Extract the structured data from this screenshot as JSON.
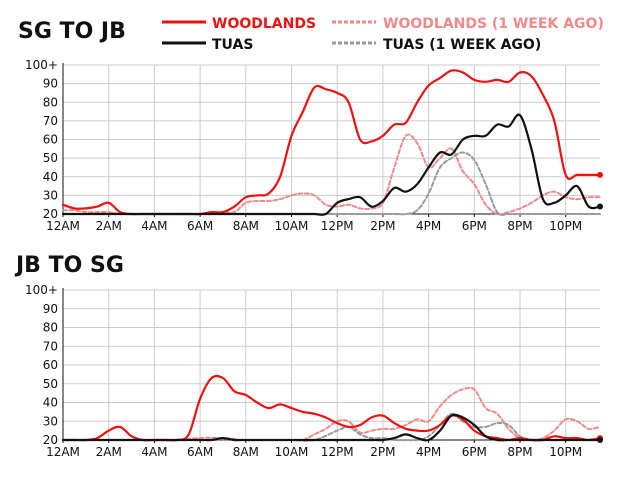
{
  "legend": {
    "items": [
      {
        "label": "WOODLANDS",
        "color": "#ee1111",
        "style": "solid"
      },
      {
        "label": "WOODLANDS (1 WEEK AGO)",
        "color": "#f08a8a",
        "style": "dashed"
      },
      {
        "label": "TUAS",
        "color": "#111111",
        "style": "solid"
      },
      {
        "label": "TUAS (1 WEEK AGO)",
        "color": "#999999",
        "style": "dashed"
      }
    ]
  },
  "chart_data": [
    {
      "type": "line",
      "title": "SG TO JB",
      "x_tick_labels": [
        "12AM",
        "2AM",
        "4AM",
        "6AM",
        "8AM",
        "10AM",
        "12PM",
        "2PM",
        "4PM",
        "6PM",
        "8PM",
        "10PM"
      ],
      "y_tick_labels": [
        "20",
        "30",
        "40",
        "50",
        "60",
        "70",
        "80",
        "90",
        "100+"
      ],
      "ylim": [
        20,
        100
      ],
      "xlim": [
        0,
        23.5
      ],
      "series": [
        {
          "name": "WOODLANDS",
          "color": "#ee1111",
          "style": "solid",
          "end_marker": true,
          "x": [
            0,
            0.5,
            1,
            1.5,
            2,
            2.5,
            3,
            3.5,
            4,
            4.5,
            5,
            5.5,
            6,
            6.5,
            7,
            7.5,
            8,
            8.5,
            9,
            9.5,
            10,
            10.5,
            11,
            11.5,
            12,
            12.5,
            13,
            13.5,
            14,
            14.5,
            15,
            15.5,
            16,
            16.5,
            17,
            17.5,
            18,
            18.5,
            19,
            19.5,
            20,
            20.5,
            21,
            21.5,
            22,
            22.5,
            23,
            23.5
          ],
          "values": [
            25,
            23,
            23,
            24,
            26,
            21,
            20,
            20,
            20,
            20,
            20,
            20,
            20,
            21,
            21,
            24,
            29,
            30,
            31,
            40,
            62,
            75,
            88,
            87,
            85,
            80,
            60,
            59,
            62,
            68,
            69,
            80,
            89,
            93,
            97,
            96,
            92,
            91,
            92,
            91,
            96,
            94,
            84,
            70,
            41,
            41,
            41,
            41
          ]
        },
        {
          "name": "WOODLANDS (1 WEEK AGO)",
          "color": "#f08a8a",
          "style": "dashed",
          "x": [
            0,
            0.5,
            1,
            1.5,
            2,
            2.5,
            3,
            3.5,
            4,
            4.5,
            5,
            5.5,
            6,
            6.5,
            7,
            7.5,
            8,
            8.5,
            9,
            9.5,
            10,
            10.5,
            11,
            11.5,
            12,
            12.5,
            13,
            13.5,
            14,
            14.5,
            15,
            15.5,
            16,
            16.5,
            17,
            17.5,
            18,
            18.5,
            19,
            19.5,
            20,
            20.5,
            21,
            21.5,
            22,
            22.5,
            23,
            23.5
          ],
          "values": [
            22,
            22,
            21,
            21,
            21,
            20,
            20,
            20,
            20,
            20,
            20,
            20,
            20,
            20,
            21,
            21,
            26,
            27,
            27,
            28,
            30,
            31,
            30,
            25,
            24,
            25,
            23,
            23,
            26,
            45,
            62,
            58,
            45,
            50,
            55,
            43,
            36,
            25,
            20,
            21,
            23,
            26,
            30,
            32,
            29,
            28,
            29,
            29
          ]
        },
        {
          "name": "TUAS",
          "color": "#111111",
          "style": "solid",
          "end_marker": true,
          "x": [
            0,
            1,
            2,
            3,
            4,
            5,
            6,
            7,
            8,
            9,
            10,
            10.5,
            11,
            11.5,
            12,
            12.5,
            13,
            13.5,
            14,
            14.5,
            15,
            15.5,
            16,
            16.5,
            17,
            17.5,
            18,
            18.5,
            19,
            19.5,
            20,
            20.5,
            21,
            21.5,
            22,
            22.5,
            23,
            23.5
          ],
          "values": [
            20,
            20,
            20,
            20,
            20,
            20,
            20,
            20,
            20,
            20,
            20,
            20,
            20,
            20,
            26,
            28,
            29,
            24,
            27,
            34,
            32,
            36,
            45,
            53,
            52,
            60,
            62,
            62,
            68,
            67,
            73,
            55,
            28,
            26,
            30,
            35,
            24,
            24
          ]
        },
        {
          "name": "TUAS (1 WEEK AGO)",
          "color": "#999999",
          "style": "dashed",
          "x": [
            0,
            1,
            2,
            3,
            4,
            5,
            6,
            7,
            8,
            9,
            10,
            10.5,
            11,
            11.5,
            12,
            12.5,
            13,
            13.5,
            14,
            14.5,
            15,
            15.5,
            16,
            16.5,
            17,
            17.5,
            18,
            18.5,
            19,
            19.5,
            20,
            20.5,
            21,
            21.5,
            22,
            22.5,
            23,
            23.5
          ],
          "values": [
            20,
            20,
            20,
            20,
            20,
            20,
            20,
            20,
            20,
            20,
            20,
            20,
            20,
            20,
            20,
            20,
            20,
            20,
            20,
            20,
            20,
            22,
            31,
            45,
            50,
            53,
            49,
            36,
            21,
            20,
            20,
            20,
            20,
            20,
            20,
            20,
            20,
            20
          ]
        }
      ]
    },
    {
      "type": "line",
      "title": "JB TO SG",
      "x_tick_labels": [
        "12AM",
        "2AM",
        "4AM",
        "6AM",
        "8AM",
        "10AM",
        "12PM",
        "2PM",
        "4PM",
        "6PM",
        "8PM",
        "10PM"
      ],
      "y_tick_labels": [
        "20",
        "30",
        "40",
        "50",
        "60",
        "70",
        "80",
        "90",
        "100+"
      ],
      "ylim": [
        20,
        100
      ],
      "xlim": [
        0,
        23.5
      ],
      "series": [
        {
          "name": "WOODLANDS",
          "color": "#ee1111",
          "style": "solid",
          "end_marker": true,
          "x": [
            0,
            0.5,
            1,
            1.5,
            2,
            2.5,
            3,
            3.5,
            4,
            4.5,
            5,
            5.5,
            6,
            6.5,
            7,
            7.5,
            8,
            8.5,
            9,
            9.5,
            10,
            10.5,
            11,
            11.5,
            12,
            12.5,
            13,
            13.5,
            14,
            14.5,
            15,
            15.5,
            16,
            16.5,
            17,
            17.5,
            18,
            18.5,
            19,
            19.5,
            20,
            20.5,
            21,
            21.5,
            22,
            22.5,
            23,
            23.5
          ],
          "values": [
            20,
            20,
            20,
            21,
            25,
            27,
            22,
            20,
            20,
            20,
            20,
            23,
            42,
            53,
            53,
            46,
            44,
            40,
            37,
            39,
            37,
            35,
            34,
            32,
            29,
            27,
            28,
            32,
            33,
            29,
            26,
            25,
            25,
            28,
            33,
            31,
            25,
            22,
            21,
            20,
            21,
            20,
            20,
            22,
            21,
            21,
            20,
            21
          ]
        },
        {
          "name": "WOODLANDS (1 WEEK AGO)",
          "color": "#f08a8a",
          "style": "dashed",
          "x": [
            0,
            1,
            2,
            3,
            4,
            5,
            6,
            7,
            8,
            9,
            10,
            10.5,
            11,
            11.5,
            12,
            12.5,
            13,
            13.5,
            14,
            14.5,
            15,
            15.5,
            16,
            16.5,
            17,
            17.5,
            18,
            18.5,
            19,
            19.5,
            20,
            20.5,
            21,
            21.5,
            22,
            22.5,
            23,
            23.5
          ],
          "values": [
            20,
            20,
            20,
            20,
            20,
            20,
            21,
            21,
            20,
            20,
            20,
            20,
            23,
            26,
            30,
            30,
            24,
            25,
            26,
            26,
            28,
            31,
            30,
            38,
            44,
            47,
            47,
            37,
            34,
            26,
            21,
            20,
            21,
            25,
            31,
            30,
            26,
            27
          ]
        },
        {
          "name": "TUAS",
          "color": "#111111",
          "style": "solid",
          "end_marker": true,
          "x": [
            0,
            1,
            2,
            3,
            4,
            5,
            6,
            6.5,
            7,
            7.5,
            8,
            9,
            10,
            11,
            12,
            12.5,
            13,
            13.5,
            14,
            14.5,
            15,
            15.5,
            16,
            16.5,
            17,
            17.5,
            18,
            18.5,
            19,
            19.5,
            20,
            20.5,
            21,
            21.5,
            22,
            22.5,
            23,
            23.5
          ],
          "values": [
            20,
            20,
            20,
            20,
            20,
            20,
            20,
            20,
            21,
            20,
            20,
            20,
            20,
            20,
            20,
            20,
            20,
            20,
            20,
            21,
            23,
            21,
            20,
            25,
            33,
            32,
            28,
            22,
            20,
            20,
            20,
            20,
            20,
            20,
            20,
            20,
            20,
            20
          ]
        },
        {
          "name": "TUAS (1 WEEK AGO)",
          "color": "#999999",
          "style": "dashed",
          "x": [
            0,
            1,
            2,
            3,
            4,
            5,
            6,
            7,
            8,
            9,
            10,
            11,
            12,
            12.5,
            13,
            13.5,
            14,
            14.5,
            15,
            15.5,
            16,
            16.5,
            17,
            17.5,
            18,
            18.5,
            19,
            19.5,
            20,
            20.5,
            21,
            21.5,
            22,
            22.5,
            23,
            23.5
          ],
          "values": [
            20,
            20,
            20,
            20,
            20,
            20,
            20,
            20,
            20,
            20,
            20,
            20,
            25,
            27,
            23,
            21,
            21,
            20,
            20,
            20,
            22,
            28,
            34,
            30,
            27,
            27,
            29,
            28,
            22,
            20,
            20,
            20,
            20,
            20,
            20,
            20
          ]
        }
      ]
    }
  ]
}
